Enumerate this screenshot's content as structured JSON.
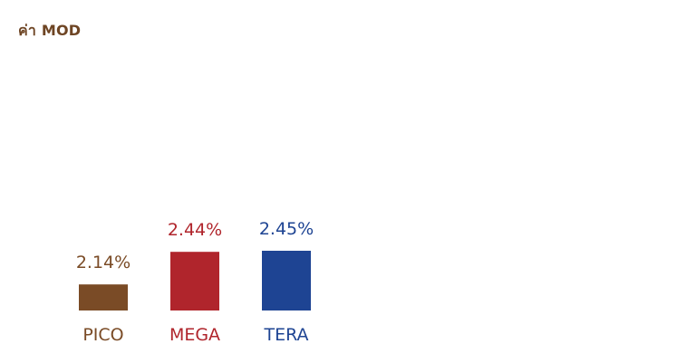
{
  "chart_data": {
    "type": "bar",
    "title": "ค่า MOD",
    "categories": [
      "PICO",
      "MEGA",
      "TERA"
    ],
    "values": [
      2.14,
      2.44,
      2.45
    ],
    "value_labels": [
      "2.14%",
      "2.44%",
      "2.45%"
    ],
    "colors": [
      "#7a4b26",
      "#b0252c",
      "#1e4493"
    ],
    "ylim": [
      1.9,
      2.5
    ],
    "grid": false,
    "legend": "none"
  }
}
